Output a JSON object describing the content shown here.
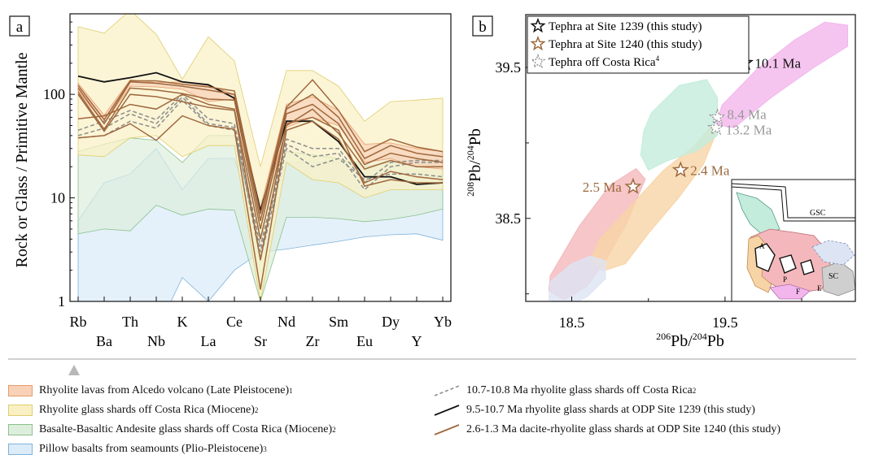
{
  "panel_a": {
    "label": "a",
    "ylabel": "Rock or Glass / Primitive Mantle",
    "chart_data": {
      "type": "line",
      "log_y": true,
      "ylim": [
        1,
        600
      ],
      "yticks": [
        1,
        10,
        100
      ],
      "ytick_labels": [
        "1",
        "10",
        "100"
      ],
      "categories": [
        "Rb",
        "Ba",
        "Th",
        "Nb",
        "K",
        "La",
        "Ce",
        "Sr",
        "Nd",
        "Zr",
        "Sm",
        "Eu",
        "Dy",
        "Y",
        "Yb"
      ],
      "category_label_row": [
        0,
        1,
        0,
        1,
        0,
        1,
        0,
        1,
        0,
        1,
        0,
        1,
        0,
        1,
        0
      ],
      "bands": [
        {
          "name": "Pillow basalts from seamounts (Plio-Pleistocene)",
          "color": "#dcecf8",
          "stroke": "#7fb2dc",
          "upper": [
            6,
            14,
            17,
            30,
            12,
            24,
            24,
            4,
            22,
            22,
            22,
            22,
            25,
            25,
            27
          ],
          "lower": [
            0.5,
            0.5,
            0.5,
            0.5,
            1.7,
            1.0,
            2.0,
            3.0,
            3.2,
            3.5,
            3.8,
            4.2,
            4.4,
            4.5,
            3.9
          ]
        },
        {
          "name": "Basalte-Basaltic Andesite glass shards off Costa Rica (Miocene)",
          "color": "#ddeedd",
          "stroke": "#8cc08c",
          "upper": [
            28,
            33,
            38,
            36,
            22,
            40,
            40,
            9,
            28,
            26,
            24,
            20,
            22,
            22,
            20
          ],
          "lower": [
            4.5,
            5.0,
            4.8,
            8.5,
            6.8,
            7.8,
            7.6,
            1.0,
            6.5,
            6.5,
            6.3,
            5.9,
            6.2,
            6.8,
            7.8
          ]
        },
        {
          "name": "Rhyolite glass shards off Costa Rica (Miocene)",
          "color": "#f9f1c4",
          "stroke": "#e0cd6c",
          "upper": [
            450,
            390,
            650,
            380,
            140,
            360,
            210,
            20,
            170,
            170,
            120,
            55,
            85,
            88,
            92
          ],
          "lower": [
            26,
            25,
            38,
            40,
            25,
            32,
            32,
            1.0,
            22,
            15,
            14,
            10,
            12,
            12,
            12
          ]
        },
        {
          "name": "Rhyolite lavas from Alcedo volcano (Late Pleistocene)",
          "color": "#f8d2b8",
          "stroke": "#e89a6a",
          "upper": [
            128,
            63,
            138,
            130,
            132,
            122,
            100,
            8,
            80,
            95,
            70,
            33,
            34,
            30,
            28
          ],
          "lower": [
            108,
            52,
            120,
            118,
            112,
            85,
            90,
            6,
            48,
            60,
            50,
            22,
            24,
            20,
            19
          ]
        }
      ],
      "series": [
        {
          "name": "10.7-10.8 Ma rhyolite glass shards off Costa Rica",
          "style": "dashed",
          "color": "#8c8c8c",
          "lines": [
            [
              38,
              40,
              55,
              47,
              88,
              50,
              45,
              3,
              33,
              25,
              27,
              12,
              20,
              22,
              22
            ],
            [
              45,
              55,
              70,
              57,
              100,
              58,
              52,
              3.4,
              37,
              30,
              30,
              14,
              22,
              23,
              23
            ],
            [
              40,
              47,
              65,
              52,
              94,
              52,
              48,
              2.6,
              30,
              20,
              24,
              15,
              17,
              17,
              16
            ]
          ]
        },
        {
          "name": "9.5-10.7 Ma rhyolite glass shards at ODP Site 1239",
          "style": "solid",
          "color": "#111111",
          "lines": [
            [
              150,
              132,
              145,
              162,
              132,
              124,
              92,
              7.5,
              55,
              55,
              35,
              16,
              16,
              13.5,
              14
            ]
          ]
        },
        {
          "name": "2.6-1.3 Ma dacite-rhyolite glass shards at ODP Site 1240",
          "style": "solid",
          "color": "#a0683e",
          "lines": [
            [
              122,
              57,
              135,
              135,
              125,
              118,
              108,
              7,
              75,
              138,
              70,
              28,
              37,
              31,
              28
            ],
            [
              115,
              52,
              132,
              128,
              120,
              110,
              100,
              6,
              72,
              100,
              60,
              24,
              32,
              27,
              25
            ],
            [
              105,
              46,
              115,
              110,
              102,
              90,
              88,
              5,
              65,
              80,
              52,
              21,
              27,
              24,
              22
            ],
            [
              58,
              62,
              80,
              72,
              100,
              80,
              72,
              4,
              50,
              72,
              42,
              19,
              23,
              20,
              20
            ],
            [
              38,
              40,
              52,
              36,
              62,
              50,
              46,
              1.3,
              45,
              55,
              37,
              14,
              18,
              16,
              15
            ],
            [
              100,
              44,
              100,
              95,
              85,
              75,
              70,
              2.5,
              52,
              60,
              45,
              13,
              15,
              14,
              14
            ]
          ]
        }
      ]
    }
  },
  "panel_b": {
    "label": "b",
    "xlabel": "206Pb/204Pb",
    "ylabel": "208Pb/204Pb",
    "chart_data": {
      "type": "scatter",
      "xlim": [
        18.2,
        20.35
      ],
      "ylim": [
        37.95,
        39.85
      ],
      "xticks": [
        18.5,
        19.5
      ],
      "xtick_labels": [
        "18.5",
        "19.5"
      ],
      "yticks": [
        38.5,
        39.5
      ],
      "ytick_labels": [
        "38.5",
        "39.5"
      ],
      "fields": [
        {
          "color": "#f4b8bc",
          "pts": [
            [
              18.35,
              38.02
            ],
            [
              18.36,
              38.12
            ],
            [
              18.55,
              38.45
            ],
            [
              18.75,
              38.72
            ],
            [
              18.92,
              38.83
            ],
            [
              18.98,
              38.76
            ],
            [
              18.85,
              38.45
            ],
            [
              18.72,
              38.22
            ],
            [
              18.6,
              38.05
            ],
            [
              18.45,
              37.96
            ]
          ]
        },
        {
          "color": "#f7d4a6",
          "pts": [
            [
              18.62,
              38.22
            ],
            [
              18.68,
              38.36
            ],
            [
              18.9,
              38.6
            ],
            [
              19.1,
              38.82
            ],
            [
              19.3,
              38.98
            ],
            [
              19.4,
              39.1
            ],
            [
              19.44,
              39.06
            ],
            [
              19.36,
              38.86
            ],
            [
              19.2,
              38.64
            ],
            [
              19.0,
              38.4
            ],
            [
              18.85,
              38.2
            ],
            [
              18.7,
              38.15
            ]
          ]
        },
        {
          "color": "#c3ecdc",
          "pts": [
            [
              18.95,
              38.92
            ],
            [
              18.97,
              39.08
            ],
            [
              19.02,
              39.2
            ],
            [
              19.2,
              39.38
            ],
            [
              19.38,
              39.42
            ],
            [
              19.45,
              39.3
            ],
            [
              19.45,
              39.05
            ],
            [
              19.32,
              38.95
            ],
            [
              19.12,
              38.88
            ],
            [
              19.0,
              38.82
            ]
          ]
        },
        {
          "color": "#f2b6ec",
          "pts": [
            [
              19.44,
              39.12
            ],
            [
              19.48,
              39.25
            ],
            [
              19.7,
              39.48
            ],
            [
              19.95,
              39.68
            ],
            [
              20.15,
              39.8
            ],
            [
              20.3,
              39.78
            ],
            [
              20.3,
              39.64
            ],
            [
              20.08,
              39.5
            ],
            [
              19.8,
              39.3
            ],
            [
              19.56,
              39.1
            ]
          ]
        },
        {
          "color": "#dde4f4",
          "pts": [
            [
              18.35,
              37.96
            ],
            [
              18.36,
              38.08
            ],
            [
              18.5,
              38.2
            ],
            [
              18.62,
              38.25
            ],
            [
              18.72,
              38.22
            ],
            [
              18.72,
              38.1
            ],
            [
              18.6,
              37.98
            ],
            [
              18.5,
              37.93
            ]
          ]
        }
      ],
      "points": [
        {
          "series": "Tephra at Site 1239 (this study)",
          "x": 19.63,
          "y": 39.53,
          "label": "10.1 Ma",
          "color": "#111111",
          "dashed": false
        },
        {
          "series": "Tephra at Site 1240 (this study)",
          "x": 19.21,
          "y": 38.82,
          "label": "2.4 Ma",
          "color": "#9c6a3e",
          "dashed": false
        },
        {
          "series": "Tephra at Site 1240 (this study)",
          "x": 18.9,
          "y": 38.71,
          "label": "2.5 Ma",
          "color": "#9c6a3e",
          "dashed": false
        },
        {
          "series": "Tephra off Costa Rica",
          "x": 19.45,
          "y": 39.17,
          "label": "8.4 Ma",
          "color": "#999999",
          "dashed": true
        },
        {
          "series": "Tephra off Costa Rica",
          "x": 19.44,
          "y": 39.1,
          "label": "13.2 Ma",
          "color": "#999999",
          "dashed": true
        }
      ],
      "legend": [
        {
          "text": "Tephra at Site 1239 (this study)",
          "color": "#111111",
          "dashed": false,
          "sup": ""
        },
        {
          "text": "Tephra at Site 1240 (this study)",
          "color": "#9c6a3e",
          "dashed": false,
          "sup": ""
        },
        {
          "text": "Tephra off Costa Rica",
          "color": "#999999",
          "dashed": true,
          "sup": "4"
        }
      ],
      "inset": {
        "labels": [
          "GSC",
          "SC",
          "A",
          "P",
          "F",
          "E"
        ]
      }
    }
  },
  "legend": {
    "left": [
      {
        "text": "Rhyolite lavas from Alcedo volcano (Late Pleistocene)",
        "sup": "1",
        "color": "#f8d2b8",
        "stroke": "#e89a6a"
      },
      {
        "text": "Rhyolite glass shards off Costa Rica (Miocene)",
        "sup": "2",
        "color": "#f9f1c4",
        "stroke": "#e0cd6c"
      },
      {
        "text": "Basalte-Basaltic Andesite glass shards off Costa Rica (Miocene)",
        "sup": "2",
        "color": "#ddeedd",
        "stroke": "#8cc08c"
      },
      {
        "text": "Pillow basalts from seamounts (Plio-Pleistocene)",
        "sup": "3",
        "color": "#dcecf8",
        "stroke": "#7fb2dc"
      }
    ],
    "right": [
      {
        "text": "10.7-10.8 Ma rhyolite glass shards off Costa Rica",
        "sup": "2",
        "color": "#8c8c8c",
        "dashed": true
      },
      {
        "text": "9.5-10.7 Ma rhyolite glass shards at ODP Site 1239 (this study)",
        "sup": "",
        "color": "#111111",
        "dashed": false
      },
      {
        "text": "2.6-1.3 Ma dacite-rhyolite glass shards at ODP Site 1240 (this study)",
        "sup": "",
        "color": "#a0683e",
        "dashed": false
      }
    ]
  }
}
